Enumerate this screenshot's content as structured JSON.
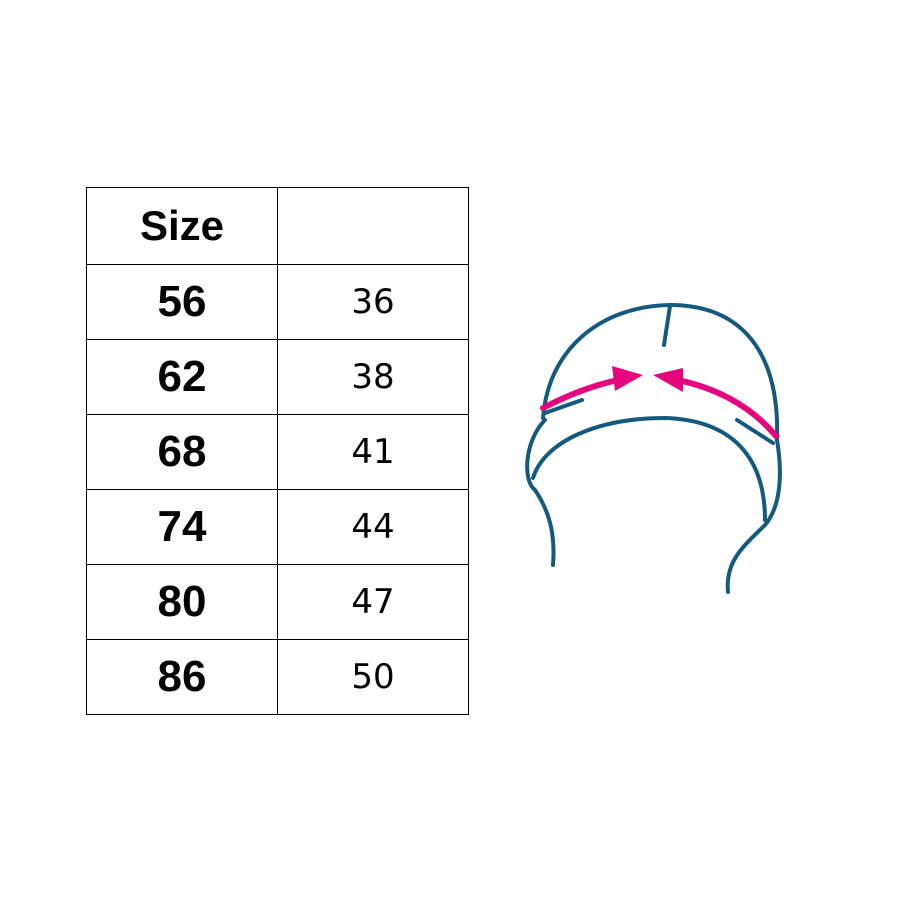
{
  "table": {
    "headers": [
      "Size",
      ""
    ],
    "rows": [
      {
        "size": "56",
        "value": "36"
      },
      {
        "size": "62",
        "value": "38"
      },
      {
        "size": "68",
        "value": "41"
      },
      {
        "size": "74",
        "value": "44"
      },
      {
        "size": "80",
        "value": "47"
      },
      {
        "size": "86",
        "value": "50"
      }
    ]
  },
  "illustration": {
    "icon": "hat-head-circumference-icon",
    "outline_color": "#135a7e",
    "arrow_color": "#e5067f"
  }
}
